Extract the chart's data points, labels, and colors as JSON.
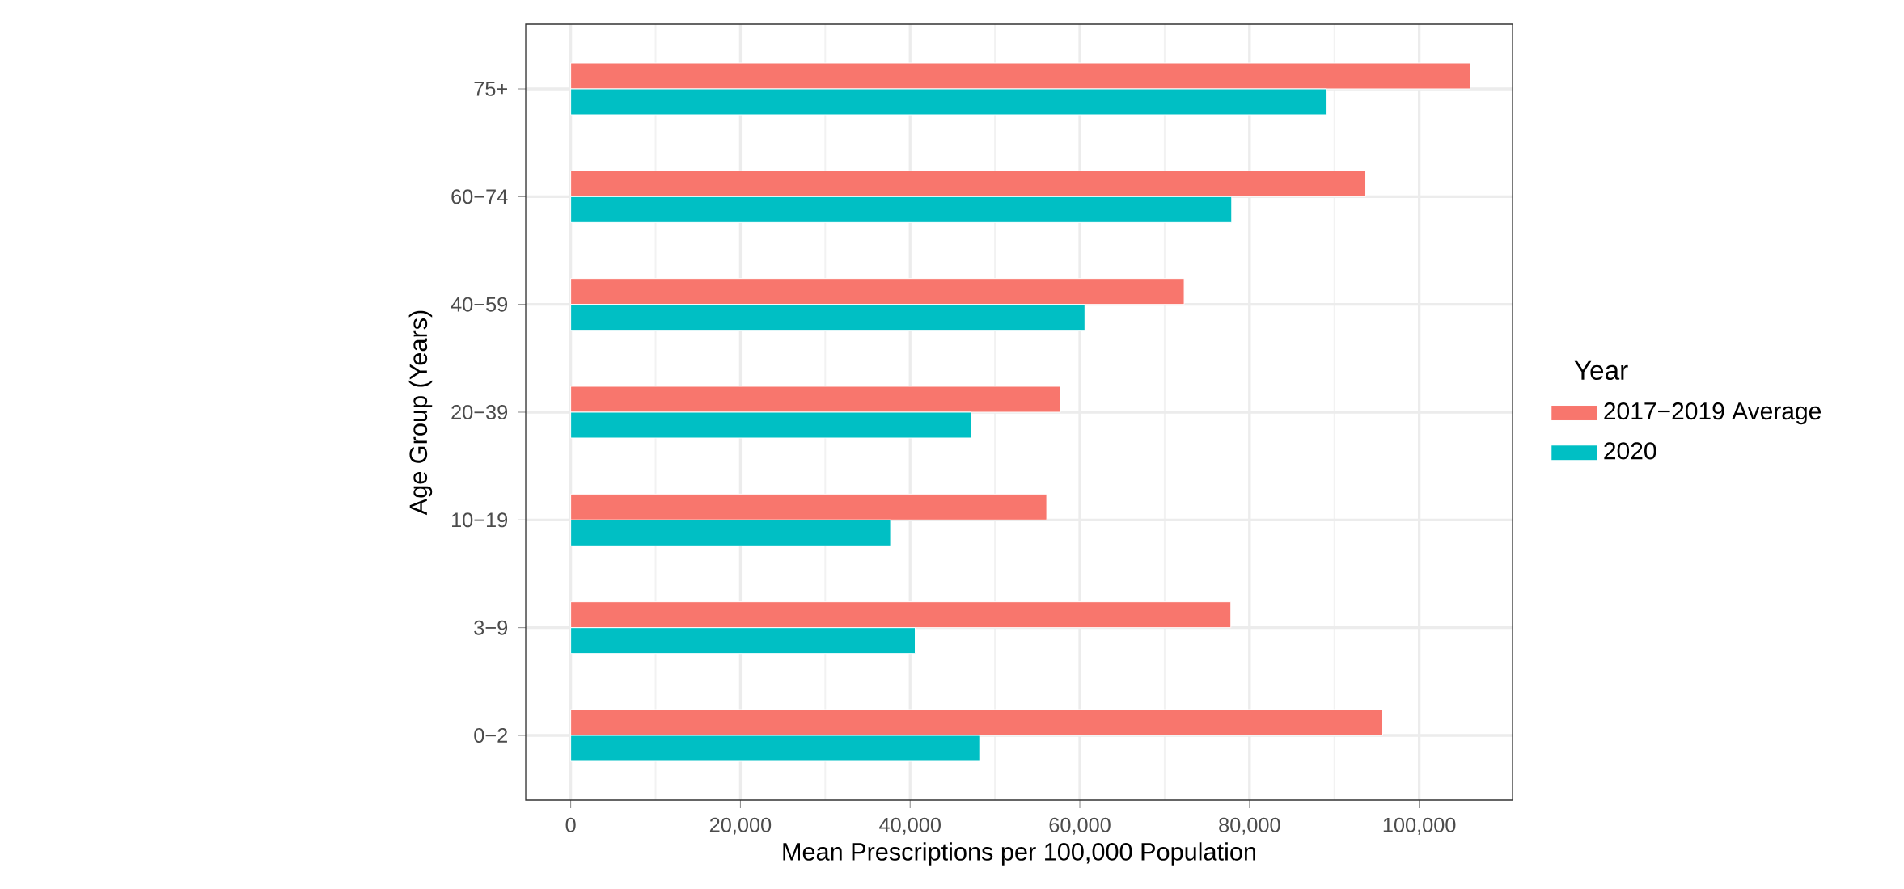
{
  "chart_data": {
    "type": "bar",
    "orientation": "horizontal",
    "xlabel": "Mean Prescriptions per 100,000 Population",
    "ylabel": "Age Group (Years)",
    "legend_title": "Year",
    "legend": "right",
    "grid": true,
    "categories": [
      "75+",
      "60−74",
      "40−59",
      "20−39",
      "10−19",
      "3−9",
      "0−2"
    ],
    "series": [
      {
        "name": "2017−2019 Average",
        "color": "#f8766d",
        "values": [
          106000,
          93700,
          72300,
          57700,
          56100,
          77800,
          95700
        ]
      },
      {
        "name": "2020",
        "color": "#00bfc4",
        "values": [
          89100,
          77900,
          60600,
          47200,
          37700,
          40600,
          48200
        ]
      }
    ],
    "xlim": [
      -5300,
      111000
    ],
    "xticks": [
      0,
      {
        "value": 20000,
        "label": "20,000"
      },
      {
        "value": 40000,
        "label": "40,000"
      },
      {
        "value": 60000,
        "label": "60,000"
      },
      {
        "value": 80000,
        "label": "80,000"
      },
      {
        "value": 100000,
        "label": "100,000"
      }
    ]
  }
}
